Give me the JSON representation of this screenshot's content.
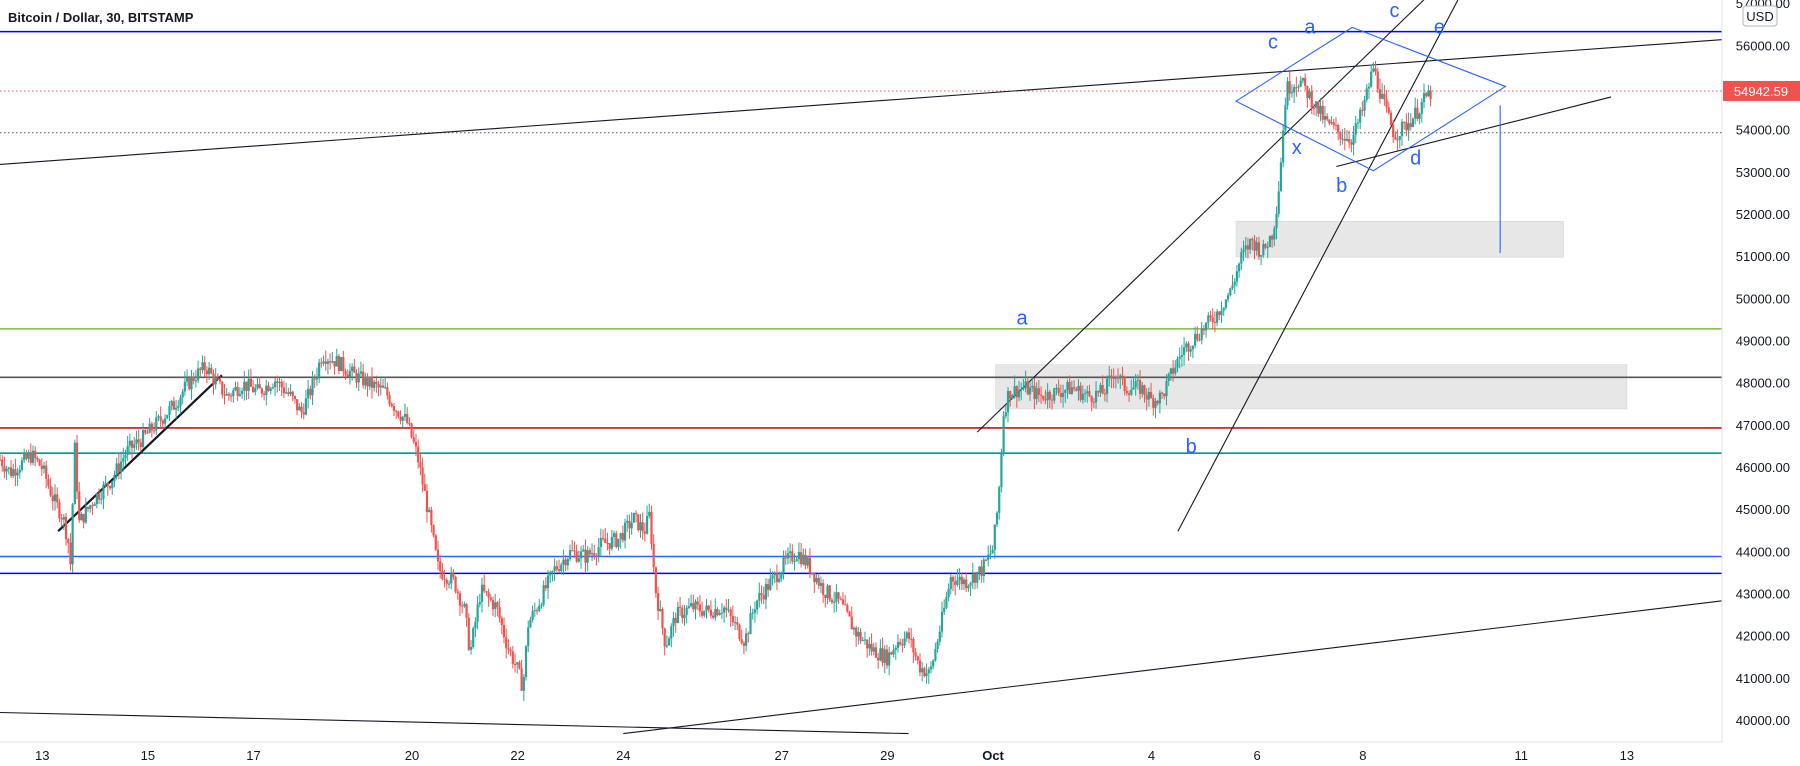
{
  "chart_title": "Bitcoin / Dollar, 30, BITSTAMP",
  "currency_badge": "USD",
  "current_price_label": "54942.59",
  "colors": {
    "up": "#26a69a",
    "down": "#ef5350",
    "wave_label": "#2962ff",
    "box_fill": "#e3e3e3",
    "price_badge": "#ef5350"
  },
  "chart_data": {
    "type": "candlestick",
    "symbol": "Bitcoin / Dollar",
    "interval": "30",
    "exchange": "BITSTAMP",
    "ylim": [
      39500,
      57100
    ],
    "y_ticks": [
      "40000.00",
      "41000.00",
      "42000.00",
      "43000.00",
      "44000.00",
      "45000.00",
      "46000.00",
      "47000.00",
      "48000.00",
      "49000.00",
      "50000.00",
      "51000.00",
      "52000.00",
      "53000.00",
      "54000.00",
      "55000.00",
      "56000.00",
      "57000.00"
    ],
    "x_ticks": [
      {
        "label": "13",
        "day": 13
      },
      {
        "label": "15",
        "day": 15
      },
      {
        "label": "17",
        "day": 17
      },
      {
        "label": "20",
        "day": 20
      },
      {
        "label": "22",
        "day": 22
      },
      {
        "label": "24",
        "day": 24
      },
      {
        "label": "27",
        "day": 27
      },
      {
        "label": "29",
        "day": 29
      },
      {
        "label": "Oct",
        "day": 31
      },
      {
        "label": "4",
        "day": 34
      },
      {
        "label": "6",
        "day": 36
      },
      {
        "label": "8",
        "day": 38
      },
      {
        "label": "11",
        "day": 41
      },
      {
        "label": "13",
        "day": 43
      }
    ],
    "day_range": [
      12.2,
      44.8
    ],
    "price_path": [
      [
        12.2,
        46200
      ],
      [
        12.4,
        45900
      ],
      [
        12.6,
        46100
      ],
      [
        12.8,
        46300
      ],
      [
        13.0,
        46000
      ],
      [
        13.2,
        45300
      ],
      [
        13.4,
        44800
      ],
      [
        13.5,
        44200
      ],
      [
        13.55,
        43500
      ],
      [
        13.6,
        46800
      ],
      [
        13.7,
        44700
      ],
      [
        13.85,
        45000
      ],
      [
        14.0,
        45300
      ],
      [
        14.3,
        45700
      ],
      [
        14.6,
        46400
      ],
      [
        14.9,
        46700
      ],
      [
        15.2,
        47100
      ],
      [
        15.5,
        47500
      ],
      [
        15.7,
        47900
      ],
      [
        15.9,
        48200
      ],
      [
        16.1,
        48400
      ],
      [
        16.3,
        48000
      ],
      [
        16.5,
        47700
      ],
      [
        16.8,
        48000
      ],
      [
        17.1,
        47800
      ],
      [
        17.4,
        48100
      ],
      [
        17.7,
        47700
      ],
      [
        17.9,
        47300
      ],
      [
        18.1,
        47900
      ],
      [
        18.3,
        48700
      ],
      [
        18.6,
        48500
      ],
      [
        18.9,
        48200
      ],
      [
        19.2,
        48000
      ],
      [
        19.5,
        47800
      ],
      [
        19.7,
        47400
      ],
      [
        19.9,
        47100
      ],
      [
        20.1,
        46300
      ],
      [
        20.3,
        45000
      ],
      [
        20.5,
        43600
      ],
      [
        20.8,
        43300
      ],
      [
        21.0,
        42600
      ],
      [
        21.1,
        41600
      ],
      [
        21.3,
        43100
      ],
      [
        21.6,
        42700
      ],
      [
        21.8,
        41800
      ],
      [
        22.0,
        41200
      ],
      [
        22.1,
        40800
      ],
      [
        22.2,
        42300
      ],
      [
        22.4,
        42800
      ],
      [
        22.7,
        43600
      ],
      [
        23.0,
        44000
      ],
      [
        23.3,
        43900
      ],
      [
        23.6,
        44200
      ],
      [
        23.9,
        44300
      ],
      [
        24.2,
        44800
      ],
      [
        24.4,
        44500
      ],
      [
        24.5,
        44900
      ],
      [
        24.6,
        43200
      ],
      [
        24.8,
        41800
      ],
      [
        25.0,
        42500
      ],
      [
        25.3,
        42700
      ],
      [
        25.6,
        42600
      ],
      [
        25.9,
        42700
      ],
      [
        26.1,
        42300
      ],
      [
        26.3,
        41900
      ],
      [
        26.5,
        42800
      ],
      [
        26.8,
        43300
      ],
      [
        27.1,
        43800
      ],
      [
        27.3,
        44000
      ],
      [
        27.5,
        43700
      ],
      [
        27.8,
        43100
      ],
      [
        28.1,
        42800
      ],
      [
        28.4,
        42100
      ],
      [
        28.7,
        41700
      ],
      [
        29.0,
        41500
      ],
      [
        29.2,
        41900
      ],
      [
        29.4,
        42000
      ],
      [
        29.6,
        41300
      ],
      [
        29.8,
        41100
      ],
      [
        30.0,
        42200
      ],
      [
        30.2,
        43400
      ],
      [
        30.5,
        43300
      ],
      [
        30.8,
        43600
      ],
      [
        31.0,
        44100
      ],
      [
        31.1,
        45200
      ],
      [
        31.2,
        47300
      ],
      [
        31.3,
        47800
      ],
      [
        31.6,
        47900
      ],
      [
        31.9,
        47700
      ],
      [
        32.2,
        47800
      ],
      [
        32.5,
        47900
      ],
      [
        32.8,
        47700
      ],
      [
        33.1,
        47800
      ],
      [
        33.3,
        48300
      ],
      [
        33.5,
        47900
      ],
      [
        33.8,
        47900
      ],
      [
        34.0,
        47600
      ],
      [
        34.2,
        47700
      ],
      [
        34.4,
        48300
      ],
      [
        34.6,
        48800
      ],
      [
        34.9,
        49200
      ],
      [
        35.2,
        49600
      ],
      [
        35.5,
        50200
      ],
      [
        35.7,
        51000
      ],
      [
        35.9,
        51400
      ],
      [
        36.1,
        51100
      ],
      [
        36.3,
        51600
      ],
      [
        36.4,
        52500
      ],
      [
        36.55,
        55000
      ],
      [
        36.8,
        55200
      ],
      [
        37.0,
        54800
      ],
      [
        37.3,
        54200
      ],
      [
        37.6,
        53900
      ],
      [
        37.8,
        53800
      ],
      [
        38.0,
        54500
      ],
      [
        38.2,
        55500
      ],
      [
        38.4,
        54600
      ],
      [
        38.6,
        53900
      ],
      [
        38.8,
        54100
      ],
      [
        39.0,
        54400
      ],
      [
        39.2,
        54800
      ],
      [
        39.3,
        54900
      ]
    ],
    "horizontal_levels": [
      {
        "price": 56350,
        "color": "#0000ff",
        "style": "solid"
      },
      {
        "price": 54942.59,
        "color": "#ef5350",
        "style": "dotted"
      },
      {
        "price": 53950,
        "color": "#555555",
        "style": "dotted"
      },
      {
        "price": 49300,
        "color": "#8bc34a",
        "style": "solid"
      },
      {
        "price": 48150,
        "color": "#555555",
        "style": "solid"
      },
      {
        "price": 46950,
        "color": "#b71c1c",
        "style": "solid"
      },
      {
        "price": 46350,
        "color": "#009688",
        "style": "solid"
      },
      {
        "price": 43900,
        "color": "#2962ff",
        "style": "solid"
      },
      {
        "price": 43500,
        "color": "#0000ff",
        "style": "solid"
      }
    ],
    "zones": [
      {
        "day_from": 31.05,
        "day_to": 43.0,
        "price_from": 47400,
        "price_to": 48450
      },
      {
        "day_from": 35.6,
        "day_to": 41.8,
        "price_from": 51000,
        "price_to": 51850
      }
    ],
    "trend_lines": [
      {
        "from": [
          12.2,
          53200
        ],
        "to": [
          45.8,
          56250
        ],
        "color": "#131722"
      },
      {
        "from": [
          13.3,
          44500
        ],
        "to": [
          16.4,
          48200
        ],
        "color": "#131722"
      },
      {
        "from": [
          24.0,
          39700
        ],
        "to": [
          45.8,
          43000
        ],
        "color": "#131722"
      },
      {
        "from": [
          12.2,
          40200
        ],
        "to": [
          29.4,
          39700
        ],
        "color": "#131722"
      },
      {
        "from": [
          30.7,
          46850
        ],
        "to": [
          39.4,
          57400
        ],
        "color": "#131722"
      },
      {
        "from": [
          34.5,
          44500
        ],
        "to": [
          39.8,
          57100
        ],
        "color": "#131722"
      },
      {
        "from": [
          37.5,
          53150
        ],
        "to": [
          42.7,
          54800
        ],
        "color": "#131722"
      }
    ],
    "diamond_pattern": [
      [
        36.6,
        55500
      ],
      [
        37.8,
        56450
      ],
      [
        40.7,
        55050
      ],
      [
        38.2,
        53050
      ],
      [
        35.6,
        54700
      ]
    ],
    "measure_line": {
      "day": 40.6,
      "price_from": 54600,
      "price_to": 51100
    },
    "wave_labels": [
      {
        "text": "a",
        "day": 31.55,
        "price": 49400
      },
      {
        "text": "b",
        "day": 34.75,
        "price": 46350
      },
      {
        "text": "c",
        "day": 36.3,
        "price": 55950
      },
      {
        "text": "a",
        "day": 37.0,
        "price": 56300
      },
      {
        "text": "x",
        "day": 36.75,
        "price": 53450
      },
      {
        "text": "b",
        "day": 37.6,
        "price": 52550
      },
      {
        "text": "c",
        "day": 38.6,
        "price": 56700
      },
      {
        "text": "d",
        "day": 39.0,
        "price": 53200
      },
      {
        "text": "e",
        "day": 39.45,
        "price": 56300
      }
    ]
  }
}
